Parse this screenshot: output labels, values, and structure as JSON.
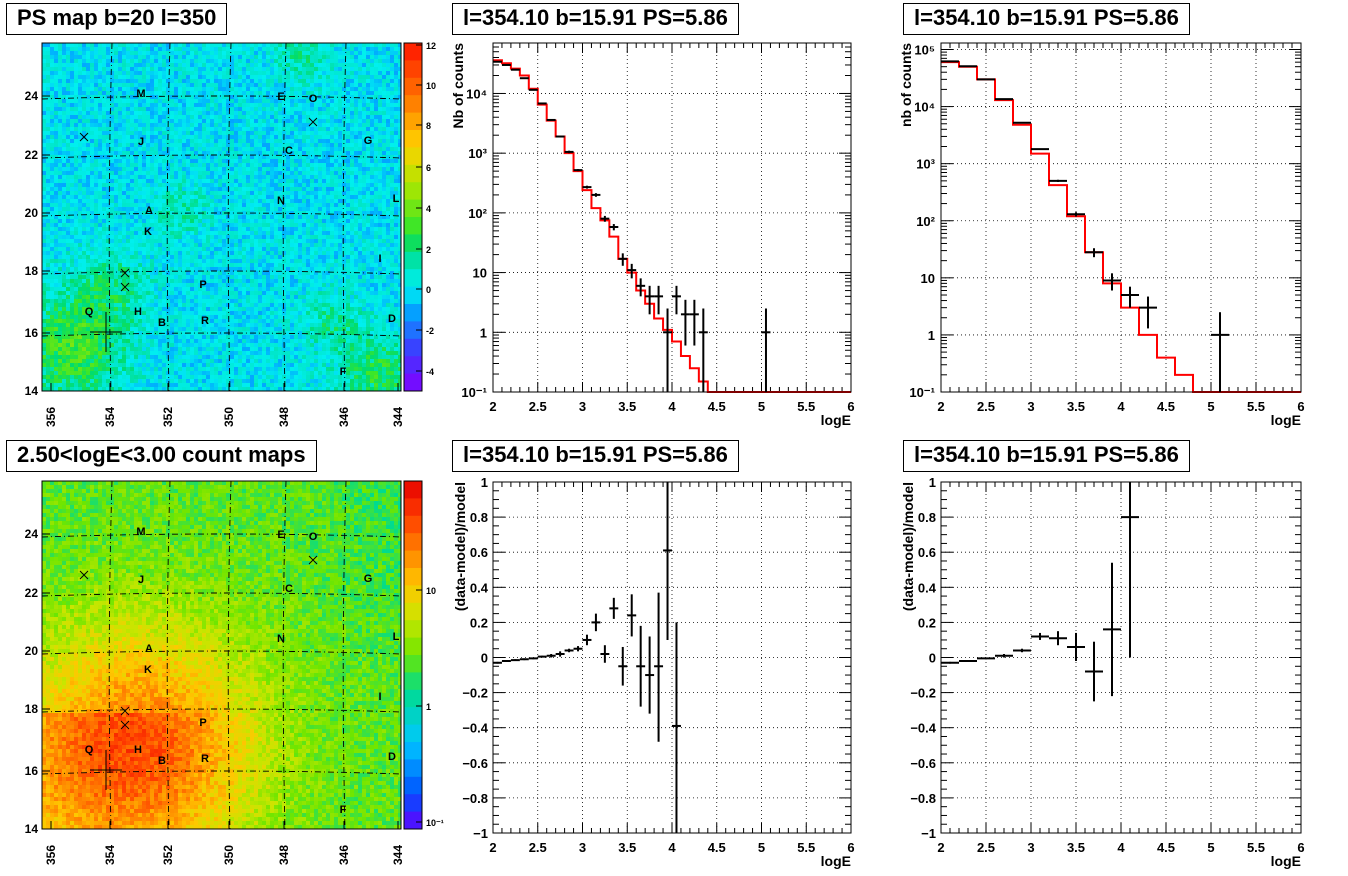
{
  "maps": [
    {
      "title": "PS map b=20 l=350",
      "xticks": [
        "356",
        "354",
        "352",
        "350",
        "348",
        "346",
        "344"
      ],
      "yticks": [
        "14",
        "16",
        "18",
        "20",
        "22",
        "24"
      ],
      "colorbar": {
        "ticks": [
          "12",
          "10",
          "8",
          "6",
          "4",
          "2",
          "0",
          "-2",
          "-4"
        ]
      },
      "sources": [
        "M",
        "E",
        "O",
        "J",
        "C",
        "G",
        "N",
        "A",
        "L",
        "K",
        "I",
        "P",
        "Q",
        "H",
        "B",
        "R",
        "D",
        "F"
      ]
    },
    {
      "title": "2.50<logE<3.00 count maps",
      "xticks": [
        "356",
        "354",
        "352",
        "350",
        "348",
        "346",
        "344"
      ],
      "yticks": [
        "14",
        "16",
        "18",
        "20",
        "22",
        "24"
      ],
      "colorbar": {
        "ticks": [
          "10",
          "1",
          "10⁻¹"
        ]
      },
      "sources": [
        "M",
        "E",
        "O",
        "J",
        "C",
        "G",
        "N",
        "A",
        "L",
        "K",
        "I",
        "P",
        "Q",
        "H",
        "B",
        "R",
        "D",
        "F"
      ]
    }
  ],
  "chart_data": [
    {
      "type": "line",
      "title": "l=354.10 b=15.91 PS=5.86",
      "xlabel": "logE",
      "ylabel": "Nb of counts",
      "xlim": [
        2,
        6
      ],
      "ylim": [
        0.1,
        70000
      ],
      "log_y": true,
      "grid": true,
      "xtick_labels": [
        "2",
        "2.5",
        "3",
        "3.5",
        "4",
        "4.5",
        "5",
        "5.5",
        "6"
      ],
      "ytick_labels": [
        "10⁻¹",
        "1",
        "10",
        "10²",
        "10³",
        "10⁴"
      ],
      "series": [
        {
          "color": "#ff0000",
          "style": "step",
          "bin_width": 0.1,
          "x": [
            2.0,
            2.1,
            2.2,
            2.3,
            2.4,
            2.5,
            2.6,
            2.7,
            2.8,
            2.9,
            3.0,
            3.1,
            3.2,
            3.3,
            3.4,
            3.5,
            3.6,
            3.7,
            3.8,
            3.9,
            4.0,
            4.1,
            4.2,
            4.3,
            4.4,
            4.5,
            4.6,
            4.7,
            4.8,
            4.9,
            5.0,
            5.1,
            5.2,
            5.3,
            5.4,
            5.5,
            5.6,
            5.7,
            5.8,
            5.9
          ],
          "y": [
            36000,
            32000,
            26000,
            20000,
            12000,
            6500,
            3500,
            1900,
            1000,
            500,
            240,
            120,
            75,
            40,
            17,
            10,
            5,
            3,
            1.7,
            1.1,
            0.7,
            0.4,
            0.25,
            0.15,
            0.1,
            0.1,
            0.1,
            0.1,
            0.1,
            0.1,
            0.1,
            0.1,
            0.1,
            0.1,
            0.1,
            0.1,
            0.1,
            0.1,
            0.1,
            0.1
          ]
        },
        {
          "color": "#000000",
          "style": "errorbar",
          "xerr": 0.05,
          "x": [
            2.05,
            2.15,
            2.25,
            2.35,
            2.45,
            2.55,
            2.65,
            2.75,
            2.85,
            2.95,
            3.05,
            3.15,
            3.25,
            3.35,
            3.45,
            3.55,
            3.65,
            3.75,
            3.85,
            3.95,
            4.05,
            4.15,
            4.25,
            4.35,
            5.05
          ],
          "y": [
            34000,
            30000,
            25000,
            18000,
            11500,
            6800,
            3600,
            1900,
            1050,
            520,
            270,
            200,
            80,
            58,
            17,
            11,
            6,
            4,
            4,
            1,
            4,
            2,
            2,
            1,
            1
          ],
          "ylo": [
            33500,
            29500,
            24500,
            17600,
            11300,
            6650,
            3500,
            1850,
            1000,
            500,
            255,
            186,
            71,
            51,
            13,
            8,
            4,
            2,
            2,
            0.1,
            2,
            0.6,
            0.6,
            0.1,
            0.1
          ],
          "yhi": [
            34500,
            30500,
            25500,
            18400,
            11700,
            6950,
            3700,
            1950,
            1100,
            540,
            285,
            214,
            89,
            65,
            21,
            14,
            8,
            6,
            6,
            2.5,
            6,
            3.5,
            3.5,
            2.5,
            2.5
          ]
        }
      ]
    },
    {
      "type": "line",
      "title": "l=354.10 b=15.91 PS=5.86",
      "xlabel": "logE",
      "ylabel": "nb of counts",
      "xlim": [
        2,
        6
      ],
      "ylim": [
        0.1,
        130000
      ],
      "log_y": true,
      "grid": true,
      "xtick_labels": [
        "2",
        "2.5",
        "3",
        "3.5",
        "4",
        "4.5",
        "5",
        "5.5",
        "6"
      ],
      "ytick_labels": [
        "10⁻¹",
        "1",
        "10",
        "10²",
        "10³",
        "10⁴",
        "10⁵"
      ],
      "series": [
        {
          "color": "#ff0000",
          "style": "step",
          "bin_width": 0.2,
          "x": [
            2.0,
            2.2,
            2.4,
            2.6,
            2.8,
            3.0,
            3.2,
            3.4,
            3.6,
            3.8,
            4.0,
            4.2,
            4.4,
            4.6,
            4.8,
            5.0,
            5.2,
            5.4,
            5.6,
            5.8
          ],
          "y": [
            60000,
            50000,
            30000,
            13000,
            4800,
            1500,
            420,
            120,
            28,
            8,
            3,
            1,
            0.4,
            0.2,
            0.1,
            0.1,
            0.1,
            0.1,
            0.1,
            0.1
          ]
        },
        {
          "color": "#000000",
          "style": "errorbar",
          "xerr": 0.1,
          "x": [
            2.1,
            2.3,
            2.5,
            2.7,
            2.9,
            3.1,
            3.3,
            3.5,
            3.7,
            3.9,
            4.1,
            4.3,
            5.1
          ],
          "y": [
            62000,
            51000,
            30000,
            13500,
            5200,
            1800,
            500,
            130,
            28,
            9,
            5,
            3,
            1
          ],
          "ylo": [
            61700,
            50700,
            29800,
            13380,
            5130,
            1760,
            478,
            119,
            23,
            6,
            3,
            1.3,
            0.1
          ],
          "yhi": [
            62300,
            51300,
            30200,
            13620,
            5270,
            1840,
            522,
            141,
            33,
            12,
            7,
            4.7,
            2.5
          ]
        }
      ]
    },
    {
      "type": "scatter",
      "title": "l=354.10 b=15.91 PS=5.86",
      "xlabel": "logE",
      "ylabel": "(data-model)/model",
      "xlim": [
        2,
        6
      ],
      "ylim": [
        -1,
        1
      ],
      "grid": true,
      "xtick_labels": [
        "2",
        "2.5",
        "3",
        "3.5",
        "4",
        "4.5",
        "5",
        "5.5",
        "6"
      ],
      "ytick_labels": [
        "−1",
        "−0.8",
        "−0.6",
        "−0.4",
        "−0.2",
        "0",
        "0.2",
        "0.4",
        "0.6",
        "0.8",
        "1"
      ],
      "series": [
        {
          "color": "#000000",
          "style": "errorbar",
          "xerr": 0.05,
          "x": [
            2.05,
            2.15,
            2.25,
            2.35,
            2.45,
            2.55,
            2.65,
            2.75,
            2.85,
            2.95,
            3.05,
            3.15,
            3.25,
            3.35,
            3.45,
            3.55,
            3.65,
            3.75,
            3.85,
            3.95,
            4.05
          ],
          "y": [
            -0.03,
            -0.02,
            -0.015,
            -0.01,
            -0.005,
            0.005,
            0.01,
            0.02,
            0.04,
            0.05,
            0.1,
            0.2,
            0.02,
            0.28,
            -0.05,
            0.24,
            -0.05,
            -0.1,
            -0.05,
            0.61,
            -0.39
          ],
          "ylo": [
            -0.035,
            -0.025,
            -0.02,
            -0.015,
            -0.01,
            0.0,
            0.0,
            0.005,
            0.03,
            0.035,
            0.07,
            0.15,
            -0.03,
            0.22,
            -0.16,
            0.12,
            -0.28,
            -0.32,
            -0.48,
            0.1,
            -1.0
          ],
          "yhi": [
            -0.025,
            -0.015,
            -0.01,
            -0.005,
            0.0,
            0.01,
            0.02,
            0.035,
            0.05,
            0.065,
            0.13,
            0.25,
            0.07,
            0.34,
            0.06,
            0.36,
            0.18,
            0.12,
            0.37,
            1.0,
            0.2
          ]
        }
      ]
    },
    {
      "type": "scatter",
      "title": "l=354.10 b=15.91 PS=5.86",
      "xlabel": "logE",
      "ylabel": "(data-model)/model",
      "xlim": [
        2,
        6
      ],
      "ylim": [
        -1,
        1
      ],
      "grid": true,
      "xtick_labels": [
        "2",
        "2.5",
        "3",
        "3.5",
        "4",
        "4.5",
        "5",
        "5.5",
        "6"
      ],
      "ytick_labels": [
        "−1",
        "−0.8",
        "−0.6",
        "−0.4",
        "−0.2",
        "0",
        "0.2",
        "0.4",
        "0.6",
        "0.8",
        "1"
      ],
      "series": [
        {
          "color": "#000000",
          "style": "errorbar",
          "xerr": 0.1,
          "x": [
            2.1,
            2.3,
            2.5,
            2.7,
            2.9,
            3.1,
            3.3,
            3.5,
            3.7,
            3.9,
            4.1
          ],
          "y": [
            -0.03,
            -0.02,
            -0.005,
            0.01,
            0.04,
            0.12,
            0.11,
            0.06,
            -0.08,
            0.16,
            0.8
          ],
          "ylo": [
            -0.035,
            -0.025,
            -0.01,
            0.0,
            0.03,
            0.1,
            0.07,
            -0.02,
            -0.25,
            -0.22,
            0.0
          ],
          "yhi": [
            -0.025,
            -0.015,
            0.0,
            0.02,
            0.05,
            0.14,
            0.15,
            0.14,
            0.09,
            0.54,
            1.0
          ]
        }
      ]
    }
  ]
}
